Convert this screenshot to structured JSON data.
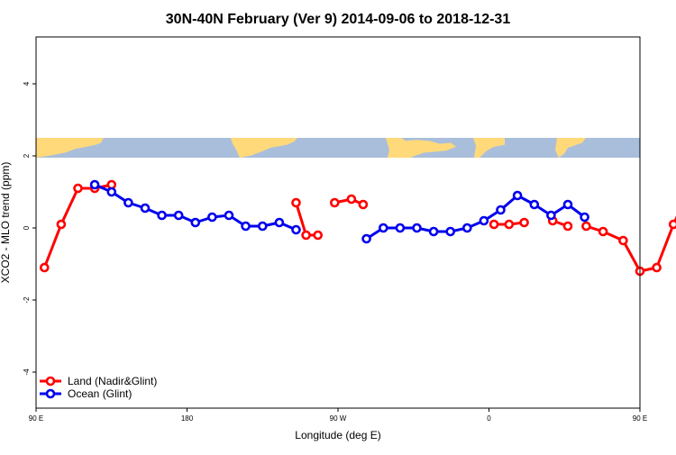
{
  "chart_data": {
    "type": "line",
    "title": "30N-40N February (Ver 9)   2014-09-06 to 2018-12-31",
    "xlabel": "Longitude (deg E)",
    "ylabel": "XCO2 - MLO trend (ppm)",
    "xlim": [
      90,
      450
    ],
    "ylim": [
      -5,
      5.3
    ],
    "x_ticks": [
      {
        "value": 90,
        "label": "90 E"
      },
      {
        "value": 180,
        "label": "180"
      },
      {
        "value": 270,
        "label": "90 W"
      },
      {
        "value": 360,
        "label": "0"
      },
      {
        "value": 450,
        "label": "90 E"
      },
      {
        "value": 540,
        "label": "180"
      }
    ],
    "y_ticks": [
      {
        "value": -4,
        "label": "-4"
      },
      {
        "value": -2,
        "label": "-2"
      },
      {
        "value": 0,
        "label": "0"
      },
      {
        "value": 2,
        "label": "2"
      },
      {
        "value": 4,
        "label": "4"
      }
    ],
    "map_strip": {
      "y_range": [
        1.95,
        2.5
      ],
      "land_color": "#FFD97A",
      "ocean_color": "#A9BEDB"
    },
    "legend_position": "bottom-left",
    "series": [
      {
        "name": "Land (Nadir&Glint)",
        "color": "#FF0000",
        "segments": [
          [
            {
              "x": 95,
              "y": -1.1
            },
            {
              "x": 105,
              "y": 0.1
            },
            {
              "x": 115,
              "y": 1.1
            },
            {
              "x": 125,
              "y": 1.1
            },
            {
              "x": 135,
              "y": 1.2
            }
          ],
          [
            {
              "x": 245,
              "y": 0.7
            },
            {
              "x": 251,
              "y": -0.2
            },
            {
              "x": 258,
              "y": -0.2
            }
          ],
          [
            {
              "x": 268,
              "y": 0.7
            },
            {
              "x": 278,
              "y": 0.8
            },
            {
              "x": 285,
              "y": 0.65
            }
          ],
          [
            {
              "x": 363,
              "y": 0.1
            },
            {
              "x": 372,
              "y": 0.1
            },
            {
              "x": 381,
              "y": 0.15
            }
          ],
          [
            {
              "x": 398,
              "y": 0.2
            },
            {
              "x": 407,
              "y": 0.05
            }
          ],
          [
            {
              "x": 418,
              "y": 0.05
            },
            {
              "x": 428,
              "y": -0.1
            },
            {
              "x": 440,
              "y": -0.35
            },
            {
              "x": 450,
              "y": -1.2
            },
            {
              "x": 460,
              "y": -1.1
            },
            {
              "x": 470,
              "y": 0.1
            },
            {
              "x": 480,
              "y": 1.1
            },
            {
              "x": 490,
              "y": 1.1
            },
            {
              "x": 500,
              "y": 1.2
            }
          ]
        ]
      },
      {
        "name": "Ocean (Glint)",
        "color": "#0000EE",
        "segments": [
          [
            {
              "x": 125,
              "y": 1.2
            },
            {
              "x": 135,
              "y": 1.0
            },
            {
              "x": 145,
              "y": 0.7
            },
            {
              "x": 155,
              "y": 0.55
            },
            {
              "x": 165,
              "y": 0.35
            },
            {
              "x": 175,
              "y": 0.35
            },
            {
              "x": 185,
              "y": 0.15
            },
            {
              "x": 195,
              "y": 0.3
            },
            {
              "x": 205,
              "y": 0.35
            },
            {
              "x": 215,
              "y": 0.05
            },
            {
              "x": 225,
              "y": 0.05
            },
            {
              "x": 235,
              "y": 0.15
            },
            {
              "x": 245,
              "y": -0.05
            }
          ],
          [
            {
              "x": 287,
              "y": -0.3
            },
            {
              "x": 297,
              "y": 0.0
            },
            {
              "x": 307,
              "y": 0.0
            },
            {
              "x": 317,
              "y": 0.0
            },
            {
              "x": 327,
              "y": -0.1
            },
            {
              "x": 337,
              "y": -0.1
            },
            {
              "x": 347,
              "y": 0.0
            },
            {
              "x": 357,
              "y": 0.2
            },
            {
              "x": 367,
              "y": 0.5
            },
            {
              "x": 377,
              "y": 0.9
            },
            {
              "x": 387,
              "y": 0.65
            },
            {
              "x": 397,
              "y": 0.35
            },
            {
              "x": 407,
              "y": 0.65
            },
            {
              "x": 417,
              "y": 0.3
            }
          ],
          [
            {
              "x": 490,
              "y": 1.2
            },
            {
              "x": 500,
              "y": 1.0
            },
            {
              "x": 510,
              "y": 0.7
            },
            {
              "x": 520,
              "y": 0.55
            },
            {
              "x": 530,
              "y": 0.35
            },
            {
              "x": 540,
              "y": 0.35
            }
          ]
        ]
      }
    ]
  }
}
